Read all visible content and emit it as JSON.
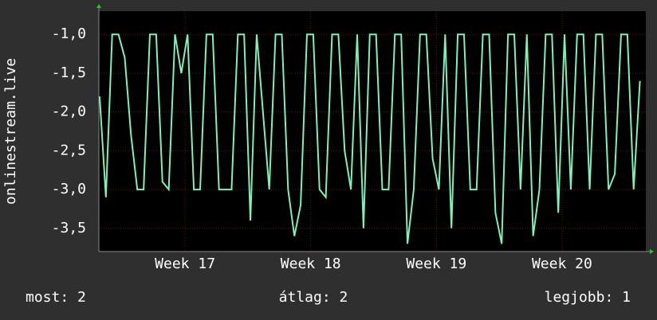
{
  "chart_data": {
    "type": "line",
    "y_label": "onlinestream.live",
    "x": [
      16.32,
      16.37,
      16.42,
      16.47,
      16.52,
      16.57,
      16.62,
      16.67,
      16.72,
      16.77,
      16.82,
      16.87,
      16.92,
      16.97,
      17.02,
      17.07,
      17.12,
      17.17,
      17.22,
      17.27,
      17.32,
      17.37,
      17.42,
      17.47,
      17.52,
      17.57,
      17.62,
      17.67,
      17.72,
      17.77,
      17.82,
      17.87,
      17.92,
      17.97,
      18.02,
      18.07,
      18.12,
      18.17,
      18.22,
      18.27,
      18.32,
      18.37,
      18.42,
      18.47,
      18.52,
      18.57,
      18.62,
      18.67,
      18.72,
      18.77,
      18.82,
      18.87,
      18.92,
      18.97,
      19.02,
      19.07,
      19.12,
      19.17,
      19.22,
      19.27,
      19.32,
      19.37,
      19.42,
      19.47,
      19.52,
      19.57,
      19.62,
      19.67,
      19.72,
      19.77,
      19.82,
      19.87,
      19.92,
      19.97,
      20.02,
      20.07,
      20.12,
      20.17,
      20.22,
      20.27,
      20.32,
      20.37,
      20.42,
      20.47,
      20.52,
      20.57,
      20.62
    ],
    "series": [
      {
        "color": "#7ff0b8",
        "values": [
          -1.8,
          -3.1,
          -1.0,
          -1.0,
          -1.3,
          -2.3,
          -3.0,
          -3.0,
          -1.0,
          -1.0,
          -2.9,
          -3.0,
          -1.0,
          -1.5,
          -1.0,
          -3.0,
          -3.0,
          -1.0,
          -1.0,
          -3.0,
          -3.0,
          -3.0,
          -1.0,
          -1.0,
          -3.4,
          -1.0,
          -2.0,
          -3.0,
          -1.0,
          -1.0,
          -3.0,
          -3.6,
          -3.2,
          -1.0,
          -1.0,
          -3.0,
          -3.1,
          -1.0,
          -1.0,
          -2.5,
          -3.0,
          -1.0,
          -3.5,
          -1.0,
          -1.0,
          -3.0,
          -3.0,
          -1.0,
          -1.0,
          -3.7,
          -3.0,
          -1.0,
          -1.0,
          -2.6,
          -3.0,
          -1.0,
          -3.5,
          -1.0,
          -1.0,
          -3.0,
          -3.0,
          -1.0,
          -1.0,
          -3.3,
          -3.7,
          -1.0,
          -1.0,
          -3.0,
          -1.0,
          -3.6,
          -3.0,
          -1.0,
          -1.0,
          -3.3,
          -1.0,
          -3.0,
          -1.0,
          -1.0,
          -3.0,
          -1.0,
          -1.0,
          -3.0,
          -2.8,
          -1.0,
          -1.0,
          -3.0,
          -1.6
        ]
      }
    ],
    "xlim": [
      16.314,
      20.667
    ],
    "xticks": [
      {
        "value": 17,
        "label": "Week 17"
      },
      {
        "value": 18,
        "label": "Week 18"
      },
      {
        "value": 19,
        "label": "Week 19"
      },
      {
        "value": 20,
        "label": "Week 20"
      }
    ],
    "ylim": [
      -3.8,
      -0.7
    ],
    "yticks": [
      {
        "value": -1,
        "label": "-1,0"
      },
      {
        "value": -1.5,
        "label": "-1,5"
      },
      {
        "value": -2,
        "label": "-2,0"
      },
      {
        "value": -2.5,
        "label": "-2,5"
      },
      {
        "value": -3,
        "label": "-3,0"
      },
      {
        "value": -3.5,
        "label": "-3,5"
      }
    ],
    "grid": true,
    "grid_color": "#5a1a1a",
    "plot_background": "#000000",
    "footer": [
      "most: 2",
      "átlag: 2",
      "legjobb: 1"
    ]
  }
}
